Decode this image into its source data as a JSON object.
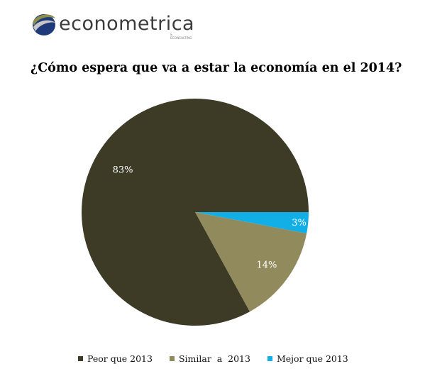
{
  "logo": {
    "name": "econometrica",
    "tagline": "& ECONSULTING"
  },
  "title": "¿Cómo espera que va a estar la economía en el 2014?",
  "chart_data": {
    "type": "pie",
    "title": "¿Cómo espera que va a estar la economía en el 2014?",
    "categories": [
      "Peor que 2013",
      "Similar  a  2013",
      "Mejor que 2013"
    ],
    "values": [
      83,
      14,
      3
    ],
    "labels": [
      "83%",
      "14%",
      "3%"
    ],
    "colors": [
      "#3d3a26",
      "#908a5c",
      "#12aee6"
    ],
    "start_angle_deg": 0,
    "direction": "counterclockwise-from-east",
    "legend_position": "bottom"
  }
}
